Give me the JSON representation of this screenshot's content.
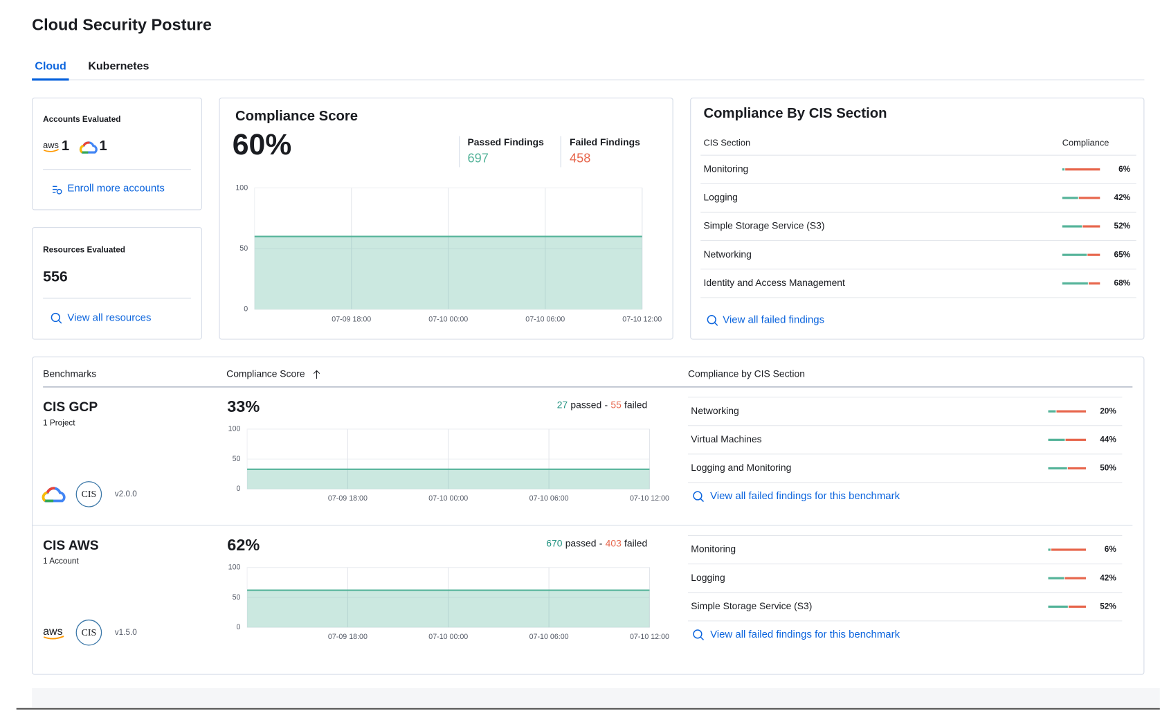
{
  "header": {
    "title": "Cloud Security Posture"
  },
  "tabs": [
    "Cloud",
    "Kubernetes"
  ],
  "accounts": {
    "title": "Accounts Evaluated",
    "aws_logo": "aws",
    "aws_count": 1,
    "gcp_count": 1,
    "link": "Enroll more accounts"
  },
  "resources": {
    "title": "Resources Evaluated",
    "count": 556,
    "link": "View all resources"
  },
  "compliance_score": {
    "title": "Compliance Score",
    "score": "60%",
    "passed_title": "Passed Findings",
    "passed": 697,
    "failed_title": "Failed Findings",
    "failed": 458,
    "chart": {
      "type": "area",
      "x": [
        null,
        "07-09 18:00",
        "07-10 00:00",
        "07-10 06:00",
        "07-10 12:00"
      ],
      "values": [
        60,
        60,
        60,
        60,
        60
      ],
      "ylim": [
        0,
        100
      ],
      "yticks": [
        0,
        50,
        100
      ],
      "color": "#54b399"
    }
  },
  "cis_sections": {
    "title": "Compliance By CIS Section",
    "columns": [
      "CIS Section",
      "Compliance"
    ],
    "rows": [
      {
        "name": "Monitoring",
        "value": 6,
        "label": "6%"
      },
      {
        "name": "Logging",
        "value": 42,
        "label": "42%"
      },
      {
        "name": "Simple Storage Service (S3)",
        "value": 52,
        "label": "52%"
      },
      {
        "name": "Networking",
        "value": 65,
        "label": "65%"
      },
      {
        "name": "Identity and Access Management",
        "value": 68,
        "label": "68%"
      }
    ],
    "link": "View all failed findings"
  },
  "benchmarks": {
    "columns": [
      "Benchmarks",
      "Compliance Score",
      "Compliance by CIS Section"
    ],
    "items": [
      {
        "name": "CIS GCP",
        "subtitle": "1 Project",
        "cis_logo": "CIS",
        "version": "v2.0.0",
        "score": "33%",
        "passed": 27,
        "passed_label": "passed",
        "separator": "-",
        "failed": 55,
        "failed_label": "failed",
        "chart": {
          "type": "area",
          "x": [
            null,
            "07-09 18:00",
            "07-10 00:00",
            "07-10 06:00",
            "07-10 12:00"
          ],
          "values": [
            33,
            33,
            33,
            33,
            33
          ],
          "ylim": [
            0,
            100
          ],
          "yticks": [
            0,
            50,
            100
          ],
          "color": "#54b399"
        },
        "sections": [
          {
            "name": "Networking",
            "value": 20,
            "label": "20%"
          },
          {
            "name": "Virtual Machines",
            "value": 44,
            "label": "44%"
          },
          {
            "name": "Logging and Monitoring",
            "value": 50,
            "label": "50%"
          }
        ],
        "link": "View all failed findings for this benchmark"
      },
      {
        "name": "CIS AWS",
        "subtitle": "1 Account",
        "provider_logo": "aws",
        "cis_logo": "CIS",
        "version": "v1.5.0",
        "score": "62%",
        "passed": 670,
        "passed_label": "passed",
        "separator": "-",
        "failed": 403,
        "failed_label": "failed",
        "chart": {
          "type": "area",
          "x": [
            null,
            "07-09 18:00",
            "07-10 00:00",
            "07-10 06:00",
            "07-10 12:00"
          ],
          "values": [
            62,
            62,
            62,
            62,
            62
          ],
          "ylim": [
            0,
            100
          ],
          "yticks": [
            0,
            50,
            100
          ],
          "color": "#54b399"
        },
        "sections": [
          {
            "name": "Monitoring",
            "value": 6,
            "label": "6%"
          },
          {
            "name": "Logging",
            "value": 42,
            "label": "42%"
          },
          {
            "name": "Simple Storage Service (S3)",
            "value": 52,
            "label": "52%"
          }
        ],
        "link": "View all failed findings for this benchmark"
      }
    ]
  }
}
